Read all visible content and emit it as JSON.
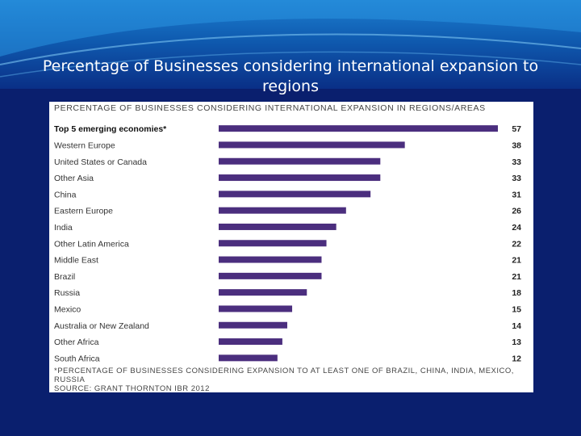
{
  "slide": {
    "title": "Percentage of Businesses considering international expansion to regions"
  },
  "chart_data": {
    "type": "bar",
    "orientation": "horizontal",
    "title": "PERCENTAGE OF BUSINESSES CONSIDERING INTERNATIONAL EXPANSION IN REGIONS/AREAS",
    "categories": [
      "Top 5 emerging economies*",
      "Western Europe",
      "United States or Canada",
      "Other Asia",
      "China",
      "Eastern Europe",
      "India",
      "Other Latin America",
      "Middle East",
      "Brazil",
      "Russia",
      "Mexico",
      "Australia or New Zealand",
      "Other Africa",
      "South Africa"
    ],
    "values": [
      57,
      38,
      33,
      33,
      31,
      26,
      24,
      22,
      21,
      21,
      18,
      15,
      14,
      13,
      12
    ],
    "xlim": [
      0,
      57
    ],
    "bar_color": "#4b2e7e",
    "grid": false,
    "footnote": "*PERCENTAGE OF BUSINESSES CONSIDERING EXPANSION TO AT LEAST ONE OF BRAZIL, CHINA, INDIA, MEXICO, RUSSIA",
    "source": "SOURCE: GRANT THORNTON IBR 2012"
  }
}
